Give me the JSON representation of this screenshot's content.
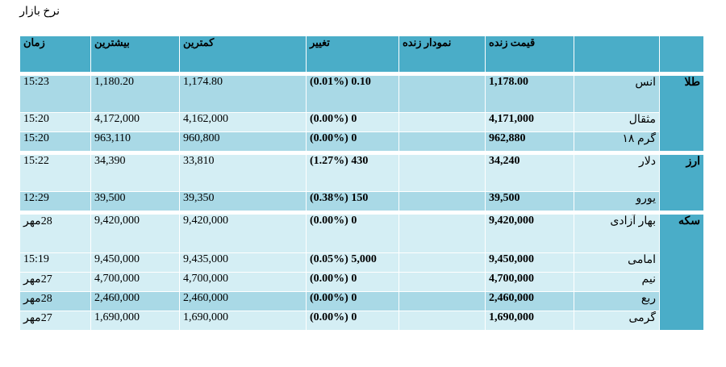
{
  "page_title": "نرخ بازار",
  "header": {
    "live_price": "قیمت زنده",
    "live_chart": "نمودار زنده",
    "change": "تغییر",
    "low": "کمترین",
    "high": "بیشترین",
    "time": "زمان"
  },
  "groups": [
    {
      "label": "طلا",
      "rows": [
        {
          "name": "انس",
          "price": "1,178.00",
          "change": "0.10 (0.01%)",
          "low": "1,174.80",
          "high": "1,180.20",
          "time": "15:23"
        },
        {
          "name": "مثقال",
          "price": "4,171,000",
          "change": "0 (0.00%)",
          "low": "4,162,000",
          "high": "4,172,000",
          "time": "15:20"
        },
        {
          "name": "گرم ۱۸",
          "price": "962,880",
          "change": "0 (0.00%)",
          "low": "960,800",
          "high": "963,110",
          "time": "15:20"
        }
      ]
    },
    {
      "label": "ارز",
      "rows": [
        {
          "name": "دلار",
          "price": "34,240",
          "change": "430 (1.27%)",
          "low": "33,810",
          "high": "34,390",
          "time": "15:22"
        },
        {
          "name": "یورو",
          "price": "39,500",
          "change": "150 (0.38%)",
          "low": "39,350",
          "high": "39,500",
          "time": "12:29"
        }
      ]
    },
    {
      "label": "سکه",
      "rows": [
        {
          "name": "بهار آزادی",
          "price": "9,420,000",
          "change": "0 (0.00%)",
          "low": "9,420,000",
          "high": "9,420,000",
          "time": "28مهر"
        },
        {
          "name": "امامی",
          "price": "9,450,000",
          "change": "5,000 (0.05%)",
          "low": "9,435,000",
          "high": "9,450,000",
          "time": "15:19"
        },
        {
          "name": "نیم",
          "price": "4,700,000",
          "change": "0 (0.00%)",
          "low": "4,700,000",
          "high": "4,700,000",
          "time": "27مهر"
        },
        {
          "name": "ربع",
          "price": "2,460,000",
          "change": "0 (0.00%)",
          "low": "2,460,000",
          "high": "2,460,000",
          "time": "28مهر"
        },
        {
          "name": "گرمی",
          "price": "1,690,000",
          "change": "0 (0.00%)",
          "low": "1,690,000",
          "high": "1,690,000",
          "time": "27مهر"
        }
      ]
    }
  ]
}
